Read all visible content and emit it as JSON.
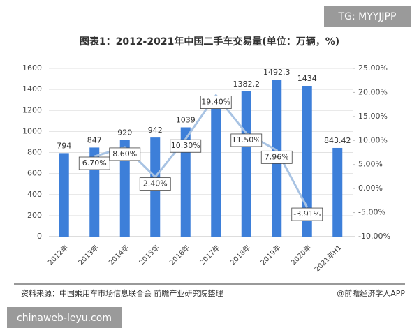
{
  "chart_data": {
    "type": "bar",
    "title": "图表1：2012-2021年中国二手车交易量(单位：万辆，%)",
    "categories": [
      "2012年",
      "2013年",
      "2014年",
      "2015年",
      "2016年",
      "2017年",
      "2018年",
      "2019年",
      "2020年",
      "2021年H1"
    ],
    "series": [
      {
        "type": "bar",
        "color": "#3d7fd9",
        "values": [
          794,
          847,
          920,
          942,
          1039,
          1240.1,
          1382.2,
          1492.3,
          1434,
          843.42
        ]
      },
      {
        "type": "line",
        "axis": "y2",
        "color": "#a8c3e3",
        "values": [
          null,
          6.7,
          8.6,
          2.4,
          10.3,
          19.4,
          11.5,
          7.96,
          -3.91,
          null
        ],
        "value_labels": [
          null,
          "6.70%",
          "8.60%",
          "2.40%",
          "10.30%",
          "19.40%",
          "11.50%",
          "7.96%",
          "-3.91%",
          null
        ]
      }
    ],
    "ylim": [
      0,
      1600
    ],
    "yticks": [
      0,
      200,
      400,
      600,
      800,
      1000,
      1200,
      1400,
      1600
    ],
    "y2lim": [
      -10,
      25
    ],
    "y2ticks": [
      {
        "value": -10,
        "label": "-10.00%"
      },
      {
        "value": -5,
        "label": "-5.00%"
      },
      {
        "value": 0,
        "label": "0.00%"
      },
      {
        "value": 5,
        "label": "5.00%"
      },
      {
        "value": 10,
        "label": "10.00%"
      },
      {
        "value": 15,
        "label": "15.00%"
      },
      {
        "value": 20,
        "label": "20.00%"
      },
      {
        "value": 25,
        "label": "25.00%"
      }
    ],
    "grid": true,
    "source": "资料来源：中国乘用车市场信息联合会 前瞻产业研究院整理",
    "credit": "@前瞻经济学人APP"
  },
  "overlay": {
    "tag": "TG: MYYJJPP",
    "site": "chinaweb-leyu.com"
  }
}
